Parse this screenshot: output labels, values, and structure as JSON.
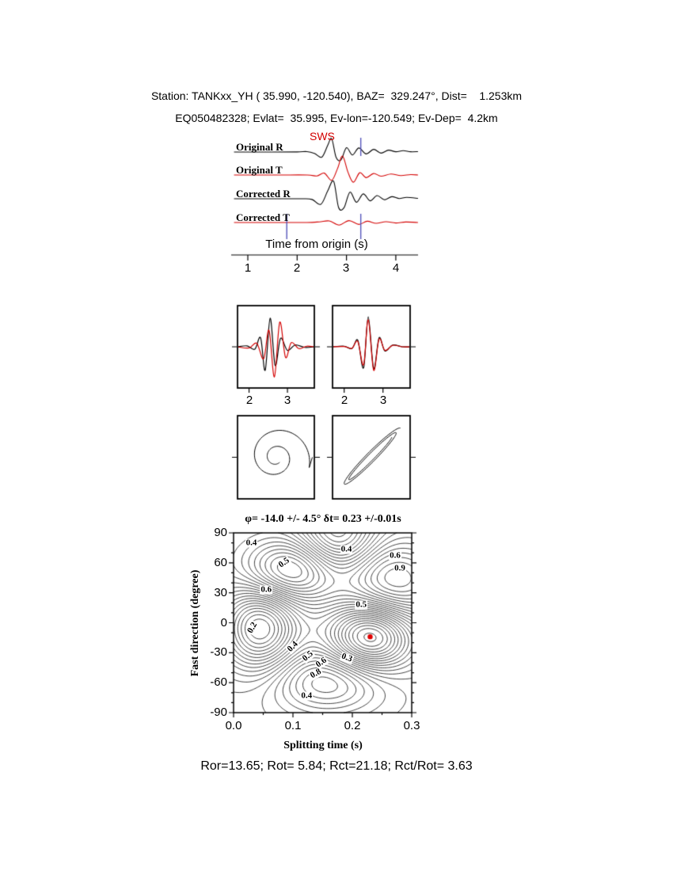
{
  "header": {
    "line1": "Station: TANKxx_YH ( 35.990, -120.540), BAZ=  329.247°, Dist=    1.253km",
    "line2": "EQ050482328; Evlat=  35.995, Ev-lon=-120.549; Ev-Dep=  4.2km"
  },
  "footer": {
    "text": "Ror=13.65; Rot= 5.84; Rct=21.18; Rct/Rot= 3.63"
  },
  "colors": {
    "trace_red": "#d40000",
    "pick_blue": "#5555bb",
    "best_fit_red": "#e00000"
  },
  "chart_data": [
    {
      "id": "seismogram-traces",
      "type": "line",
      "xlabel": "Time from origin (s)",
      "xticks": [
        "1",
        "2",
        "3",
        "4"
      ],
      "x_range": [
        0.72,
        4.45
      ],
      "annotation": "SWS",
      "pick_markers": {
        "color": "#5555bb",
        "s_pick": 3.29,
        "window": [
          1.79,
          3.29
        ]
      },
      "series": [
        {
          "name": "Original R",
          "color": "#000000",
          "points": [
            [
              0.72,
              0
            ],
            [
              1.5,
              0
            ],
            [
              2.0,
              0.01
            ],
            [
              2.2,
              0.03
            ],
            [
              2.35,
              -0.1
            ],
            [
              2.5,
              -0.38
            ],
            [
              2.62,
              0.5
            ],
            [
              2.7,
              1.0
            ],
            [
              2.79,
              -0.4
            ],
            [
              2.89,
              -0.58
            ],
            [
              3.0,
              0.32
            ],
            [
              3.12,
              -0.22
            ],
            [
              3.25,
              0.3
            ],
            [
              3.4,
              -0.14
            ],
            [
              3.55,
              0.2
            ],
            [
              3.7,
              -0.08
            ],
            [
              3.85,
              0.14
            ],
            [
              4.0,
              0.02
            ],
            [
              4.15,
              0.1
            ],
            [
              4.3,
              0.02
            ],
            [
              4.45,
              0.03
            ]
          ]
        },
        {
          "name": "Original T",
          "color": "#d40000",
          "points": [
            [
              0.72,
              0
            ],
            [
              1.6,
              0
            ],
            [
              2.2,
              0
            ],
            [
              2.4,
              -0.05
            ],
            [
              2.55,
              0.1
            ],
            [
              2.7,
              -0.28
            ],
            [
              2.82,
              0.35
            ],
            [
              2.92,
              1.0
            ],
            [
              3.03,
              0.15
            ],
            [
              3.14,
              -0.38
            ],
            [
              3.27,
              0.12
            ],
            [
              3.4,
              -0.14
            ],
            [
              3.55,
              0.08
            ],
            [
              3.7,
              -0.06
            ],
            [
              3.9,
              0.05
            ],
            [
              4.1,
              -0.03
            ],
            [
              4.3,
              0.02
            ],
            [
              4.45,
              0
            ]
          ]
        },
        {
          "name": "Corrected R",
          "color": "#000000",
          "points": [
            [
              0.72,
              0
            ],
            [
              1.6,
              0
            ],
            [
              2.1,
              0
            ],
            [
              2.3,
              -0.04
            ],
            [
              2.48,
              -0.32
            ],
            [
              2.62,
              0.45
            ],
            [
              2.74,
              1.0
            ],
            [
              2.84,
              -0.5
            ],
            [
              2.95,
              -0.52
            ],
            [
              3.07,
              0.38
            ],
            [
              3.2,
              -0.2
            ],
            [
              3.34,
              0.28
            ],
            [
              3.48,
              -0.12
            ],
            [
              3.62,
              0.18
            ],
            [
              3.77,
              -0.06
            ],
            [
              3.92,
              0.12
            ],
            [
              4.07,
              0.01
            ],
            [
              4.22,
              0.08
            ],
            [
              4.45,
              0.02
            ]
          ]
        },
        {
          "name": "Corrected T",
          "color": "#d40000",
          "points": [
            [
              0.72,
              0
            ],
            [
              1.6,
              0
            ],
            [
              2.2,
              0
            ],
            [
              2.45,
              0.04
            ],
            [
              2.65,
              0.1
            ],
            [
              2.85,
              -0.16
            ],
            [
              3.05,
              0.12
            ],
            [
              3.25,
              -0.12
            ],
            [
              3.42,
              0.08
            ],
            [
              3.6,
              -0.05
            ],
            [
              3.8,
              0.05
            ],
            [
              4.0,
              -0.03
            ],
            [
              4.2,
              0.03
            ],
            [
              4.45,
              0
            ]
          ]
        }
      ]
    },
    {
      "id": "waveform-window-original",
      "type": "line",
      "xticks": [
        "2",
        "3"
      ],
      "x_range": [
        1.7,
        3.7
      ],
      "series": [
        {
          "name": "R",
          "color": "#000000",
          "points": [
            [
              1.7,
              0
            ],
            [
              1.95,
              0.03
            ],
            [
              2.15,
              -0.08
            ],
            [
              2.3,
              0.3
            ],
            [
              2.42,
              -0.78
            ],
            [
              2.55,
              0.95
            ],
            [
              2.68,
              -0.62
            ],
            [
              2.82,
              0.28
            ],
            [
              3.0,
              -0.12
            ],
            [
              3.2,
              0.06
            ],
            [
              3.45,
              -0.02
            ],
            [
              3.7,
              0
            ]
          ]
        },
        {
          "name": "T",
          "color": "#d40000",
          "points": [
            [
              1.7,
              0
            ],
            [
              2.0,
              -0.04
            ],
            [
              2.2,
              0.12
            ],
            [
              2.38,
              -0.4
            ],
            [
              2.52,
              0.55
            ],
            [
              2.66,
              -1.0
            ],
            [
              2.8,
              0.82
            ],
            [
              2.95,
              -0.35
            ],
            [
              3.1,
              0.14
            ],
            [
              3.3,
              -0.06
            ],
            [
              3.5,
              0.02
            ],
            [
              3.7,
              0
            ]
          ]
        }
      ]
    },
    {
      "id": "waveform-window-corrected",
      "type": "line",
      "xticks": [
        "2",
        "3"
      ],
      "x_range": [
        1.7,
        3.7
      ],
      "series": [
        {
          "name": "R",
          "color": "#000000",
          "points": [
            [
              1.7,
              0
            ],
            [
              2.0,
              0.02
            ],
            [
              2.2,
              -0.06
            ],
            [
              2.35,
              0.22
            ],
            [
              2.5,
              -0.7
            ],
            [
              2.62,
              1.0
            ],
            [
              2.76,
              -0.72
            ],
            [
              2.9,
              0.3
            ],
            [
              3.05,
              -0.14
            ],
            [
              3.25,
              0.06
            ],
            [
              3.5,
              0
            ],
            [
              3.7,
              0
            ]
          ]
        },
        {
          "name": "T",
          "color": "#d40000",
          "points": [
            [
              1.7,
              0
            ],
            [
              2.0,
              0.01
            ],
            [
              2.2,
              -0.05
            ],
            [
              2.35,
              0.18
            ],
            [
              2.5,
              -0.6
            ],
            [
              2.62,
              0.9
            ],
            [
              2.76,
              -0.78
            ],
            [
              2.9,
              0.26
            ],
            [
              3.05,
              -0.12
            ],
            [
              3.25,
              0.05
            ],
            [
              3.5,
              0
            ],
            [
              3.7,
              0
            ]
          ]
        }
      ]
    },
    {
      "id": "particle-motion-original",
      "type": "line",
      "curve": {
        "kind": "spiral",
        "r0": 44,
        "decay": 0.45,
        "turns": 1.9,
        "phase": -0.3,
        "tail": 46
      }
    },
    {
      "id": "particle-motion-corrected",
      "type": "line",
      "curve": {
        "kind": "diagonal-loops",
        "a0": 52,
        "b0": 7,
        "a1": 36,
        "b1": 3,
        "angle_deg": 45
      }
    },
    {
      "id": "splitting-parameter-surface",
      "type": "heatmap",
      "title": "φ= -14.0 +/- 4.5° δt= 0.23 +/-0.01s",
      "xlabel": "Splitting time (s)",
      "ylabel": "Fast direction (degree)",
      "xlim": [
        0,
        0.3
      ],
      "ylim": [
        -90,
        90
      ],
      "xticks": [
        "0.0",
        "0.1",
        "0.2",
        "0.3"
      ],
      "yticks": [
        "90",
        "60",
        "30",
        "0",
        "-30",
        "-60",
        "-90"
      ],
      "best_fit": {
        "x": 0.23,
        "y": -14,
        "phi": -14.0,
        "phi_err": 4.5,
        "dt": 0.23,
        "dt_err": 0.01,
        "marker_color": "#e00000"
      },
      "levels": {
        "min": 0.12,
        "max": 1.16,
        "step": 0.04
      },
      "field": {
        "base": 0.7,
        "gaussians": [
          {
            "a": -0.62,
            "x": 0.23,
            "y": -14,
            "sx": 0.05,
            "sy": 24
          },
          {
            "a": -0.55,
            "x": 0.045,
            "y": -5,
            "sx": 0.045,
            "sy": 30
          },
          {
            "a": 0.45,
            "x": 0.095,
            "y": 52,
            "sx": 0.055,
            "sy": 22
          },
          {
            "a": 0.4,
            "x": 0.27,
            "y": 42,
            "sx": 0.06,
            "sy": 28
          },
          {
            "a": 0.32,
            "x": 0.16,
            "y": -58,
            "sx": 0.065,
            "sy": 22
          },
          {
            "a": -0.38,
            "x": 0.175,
            "y": 88,
            "sx": 0.045,
            "sy": 28
          }
        ]
      },
      "contour_labels": [
        {
          "text": "0.4",
          "x": 0.03,
          "y": 80,
          "rot": 0
        },
        {
          "text": "0.5",
          "x": 0.085,
          "y": 60,
          "rot": -35
        },
        {
          "text": "0.4",
          "x": 0.19,
          "y": 73,
          "rot": 0
        },
        {
          "text": "0.6",
          "x": 0.272,
          "y": 67,
          "rot": 0
        },
        {
          "text": "0.9",
          "x": 0.28,
          "y": 54,
          "rot": 0
        },
        {
          "text": "0.6",
          "x": 0.055,
          "y": 33,
          "rot": 0
        },
        {
          "text": "0.5",
          "x": 0.215,
          "y": 18,
          "rot": 0
        },
        {
          "text": "0.2",
          "x": 0.032,
          "y": -5,
          "rot": -60
        },
        {
          "text": "0.4",
          "x": 0.1,
          "y": -24,
          "rot": -45
        },
        {
          "text": "0.5",
          "x": 0.125,
          "y": -34,
          "rot": -40
        },
        {
          "text": "0.6",
          "x": 0.148,
          "y": -40,
          "rot": -35
        },
        {
          "text": "0.8",
          "x": 0.138,
          "y": -51,
          "rot": -30
        },
        {
          "text": "0.3",
          "x": 0.19,
          "y": -35,
          "rot": 20
        },
        {
          "text": "0.4",
          "x": 0.123,
          "y": -73,
          "rot": 0
        }
      ]
    }
  ]
}
